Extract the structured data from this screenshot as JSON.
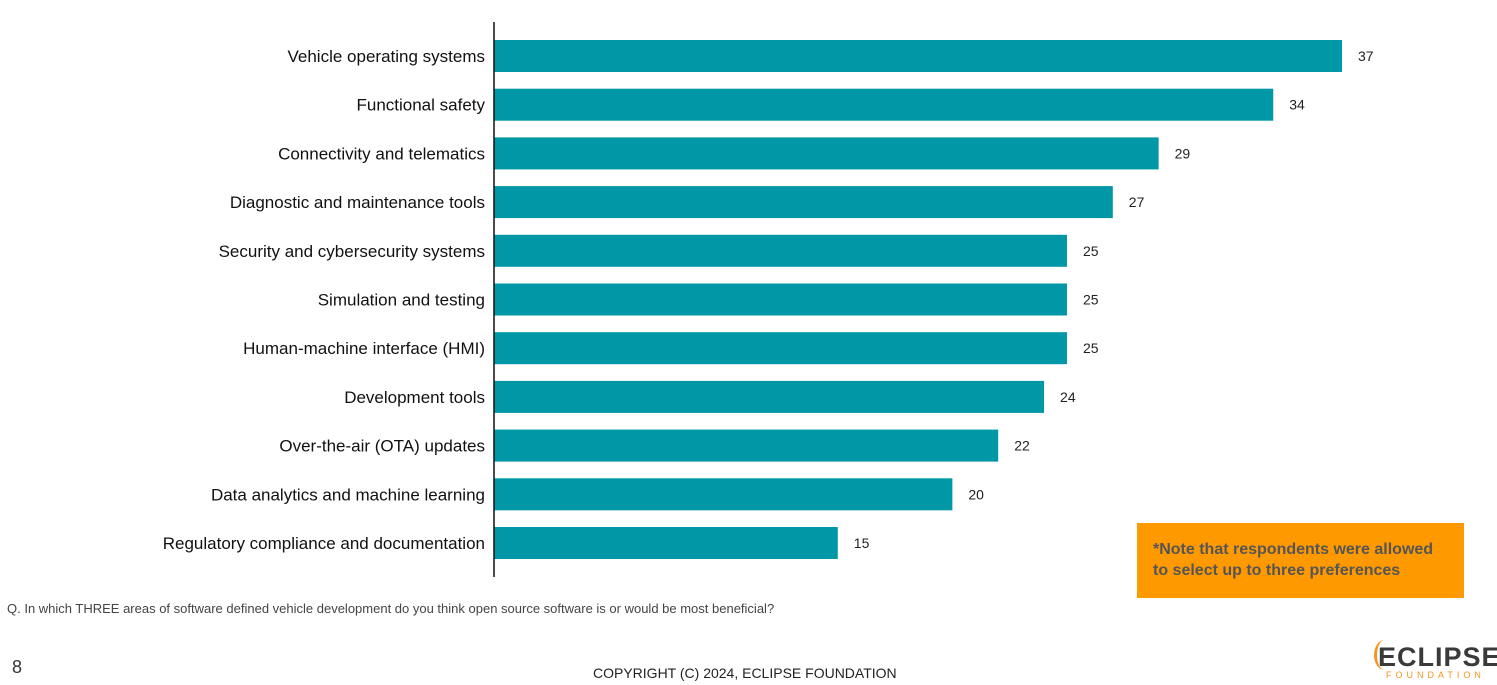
{
  "chart_data": {
    "type": "bar",
    "orientation": "horizontal",
    "categories": [
      "Vehicle operating systems",
      "Functional safety",
      "Connectivity and telematics",
      "Diagnostic and maintenance tools",
      "Security and cybersecurity systems",
      "Simulation and testing",
      "Human-machine interface (HMI)",
      "Development tools",
      "Over-the-air (OTA) updates",
      "Data analytics and machine learning",
      "Regulatory compliance and documentation"
    ],
    "values": [
      37,
      34,
      29,
      27,
      25,
      25,
      25,
      24,
      22,
      20,
      15
    ],
    "xlim": [
      0,
      37
    ],
    "bar_color": "#0097a7",
    "grid": false
  },
  "note": "*Note that respondents were allowed to select up to three preferences",
  "question": "Q. In which THREE areas of software defined vehicle development do you think open source software is or would be most beneficial?",
  "page_number": "8",
  "copyright": "COPYRIGHT (C) 2024, ECLIPSE FOUNDATION",
  "logo": {
    "name": "ECLIPSE",
    "sub": "FOUNDATION"
  }
}
